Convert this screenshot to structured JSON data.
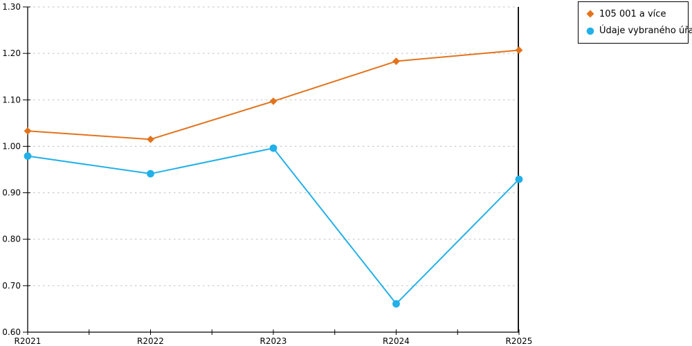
{
  "chart_data": {
    "type": "line",
    "title": "",
    "xlabel": "",
    "ylabel": "",
    "categories": [
      "R2021",
      "R2022",
      "R2023",
      "R2024",
      "R2025"
    ],
    "series": [
      {
        "name": "105 001 a více",
        "color": "#E2731C",
        "marker": "diamond",
        "values": [
          1.033,
          1.015,
          1.097,
          1.183,
          1.207
        ]
      },
      {
        "name": "Údaje vybraného úřadu",
        "color": "#22B0E8",
        "marker": "circle",
        "values": [
          0.979,
          0.941,
          0.996,
          0.661,
          0.929
        ]
      }
    ],
    "ylim": [
      0.6,
      1.3
    ],
    "ytick_step": 0.1,
    "ytick_labels": [
      "0.60",
      "0.70",
      "0.80",
      "0.90",
      "1.00",
      "1.10",
      "1.20",
      "1.30"
    ],
    "grid": "horizontal-dashed",
    "grid_color": "#BDBDBD",
    "axis_color": "#000000",
    "legend_position": "top-right",
    "minor_ticks_between_categories": true
  }
}
